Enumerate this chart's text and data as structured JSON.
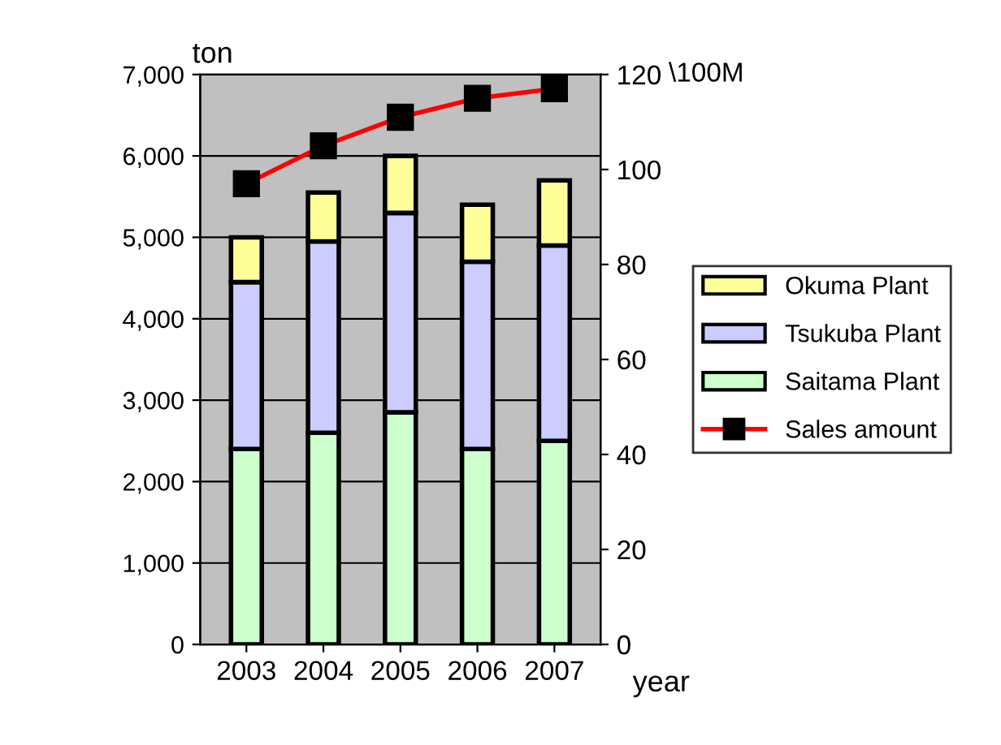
{
  "chart_data": {
    "type": "bar",
    "stacked": true,
    "categories": [
      "2003",
      "2004",
      "2005",
      "2006",
      "2007"
    ],
    "series": [
      {
        "name": "Saitama Plant",
        "color": "#ccffcc",
        "values": [
          2400,
          2600,
          2850,
          2400,
          2500
        ]
      },
      {
        "name": "Tsukuba Plant",
        "color": "#ccccff",
        "values": [
          2050,
          2350,
          2450,
          2300,
          2400
        ]
      },
      {
        "name": "Okuma Plant",
        "color": "#ffff99",
        "values": [
          550,
          600,
          700,
          700,
          800
        ]
      },
      {
        "name": "Sales amount",
        "type": "line",
        "axis": "y2",
        "color": "#ff0000",
        "marker": "square",
        "values": [
          97,
          105,
          111,
          115,
          117
        ]
      }
    ],
    "ylabel": "ton",
    "y2label": "\\100M",
    "xlabel": "year",
    "ylim": [
      0,
      7000
    ],
    "yticks": [
      {
        "value": 0,
        "label": "0"
      },
      {
        "value": 1000,
        "label": "1,000"
      },
      {
        "value": 2000,
        "label": "2,000"
      },
      {
        "value": 3000,
        "label": "3,000"
      },
      {
        "value": 4000,
        "label": "4,000"
      },
      {
        "value": 5000,
        "label": "5,000"
      },
      {
        "value": 6000,
        "label": "6,000"
      },
      {
        "value": 7000,
        "label": "7,000"
      }
    ],
    "y2lim": [
      0,
      120
    ],
    "y2ticks": [
      0,
      20,
      40,
      60,
      80,
      100,
      120
    ],
    "grid": "y",
    "legend": "right"
  }
}
